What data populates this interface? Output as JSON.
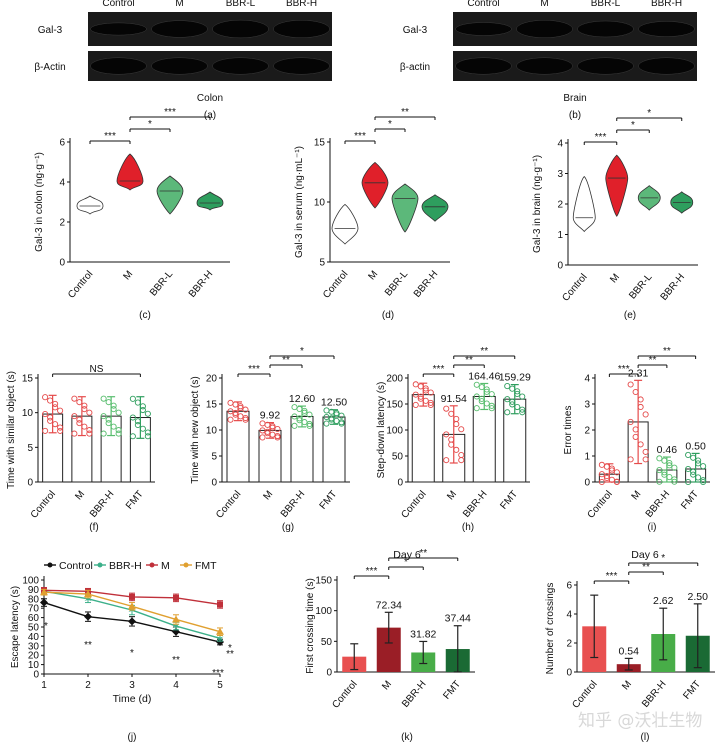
{
  "blots": [
    {
      "panel": "(a)",
      "tissue": "Colon",
      "lanes": [
        "Control",
        "M",
        "BBR-L",
        "BBR-H"
      ],
      "rows": [
        "Gal-3",
        "β-Actin"
      ],
      "intensity": {
        "Gal-3": [
          0.55,
          0.85,
          0.92,
          0.9
        ],
        "β-Actin": [
          0.95,
          0.95,
          0.95,
          0.95
        ]
      }
    },
    {
      "panel": "(b)",
      "tissue": "Brain",
      "lanes": [
        "Control",
        "M",
        "BBR-L",
        "BBR-H"
      ],
      "rows": [
        "Gal-3",
        "β-actin"
      ],
      "intensity": {
        "Gal-3": [
          0.6,
          0.9,
          0.8,
          0.75
        ],
        "β-actin": [
          0.95,
          0.95,
          0.95,
          0.95
        ]
      }
    }
  ],
  "chart_data": [
    {
      "panel": "(c)",
      "type": "violin",
      "ylabel": "Gal-3 in colon (ng·g⁻¹)",
      "ylim": [
        0,
        6
      ],
      "yticks": [
        0,
        2,
        4,
        6
      ],
      "categories": [
        "Control",
        "M",
        "BBR-L",
        "BBR-H"
      ],
      "series": [
        {
          "values": [
            [
              2.4,
              3.3
            ],
            [
              3.6,
              5.4
            ],
            [
              2.4,
              4.3
            ],
            [
              2.6,
              3.5
            ]
          ],
          "medians": [
            2.8,
            4.05,
            3.55,
            2.95
          ]
        }
      ],
      "colors": [
        "#ffffff",
        "#e0202a",
        "#5cb87a",
        "#2e9e5e"
      ],
      "significance": [
        {
          "pair": [
            "Control",
            "M"
          ],
          "label": "***"
        },
        {
          "pair": [
            "M",
            "BBR-L"
          ],
          "label": "*"
        },
        {
          "pair": [
            "M",
            "BBR-H"
          ],
          "label": "***"
        }
      ]
    },
    {
      "panel": "(d)",
      "type": "violin",
      "ylabel": "Gal-3 in serum (ng·mL⁻¹)",
      "ylim": [
        5,
        15
      ],
      "yticks": [
        5,
        10,
        15
      ],
      "categories": [
        "Control",
        "M",
        "BBR-L",
        "BBR-H"
      ],
      "series": [
        {
          "values": [
            [
              6.5,
              9.8
            ],
            [
              9.5,
              13.3
            ],
            [
              7.5,
              11.5
            ],
            [
              8.4,
              10.6
            ]
          ],
          "medians": [
            7.8,
            11.6,
            10.3,
            9.6
          ]
        }
      ],
      "colors": [
        "#ffffff",
        "#e0202a",
        "#5cb87a",
        "#2e9e5e"
      ],
      "significance": [
        {
          "pair": [
            "Control",
            "M"
          ],
          "label": "***"
        },
        {
          "pair": [
            "M",
            "BBR-L"
          ],
          "label": "*"
        },
        {
          "pair": [
            "M",
            "BBR-H"
          ],
          "label": "**"
        }
      ]
    },
    {
      "panel": "(e)",
      "type": "violin",
      "ylabel": "Gal-3 in brain (ng·g⁻¹)",
      "ylim": [
        0,
        4
      ],
      "yticks": [
        0,
        1,
        2,
        3,
        4
      ],
      "categories": [
        "Control",
        "M",
        "BBR-L",
        "BBR-H"
      ],
      "series": [
        {
          "values": [
            [
              1.1,
              2.9
            ],
            [
              1.6,
              3.6
            ],
            [
              1.8,
              2.6
            ],
            [
              1.7,
              2.4
            ]
          ],
          "medians": [
            1.55,
            2.85,
            2.2,
            2.05
          ]
        }
      ],
      "colors": [
        "#ffffff",
        "#e0202a",
        "#5cb87a",
        "#2e9e5e"
      ],
      "significance": [
        {
          "pair": [
            "Control",
            "M"
          ],
          "label": "***"
        },
        {
          "pair": [
            "M",
            "BBR-L"
          ],
          "label": "*"
        },
        {
          "pair": [
            "M",
            "BBR-H"
          ],
          "label": "*"
        }
      ]
    },
    {
      "panel": "(f)",
      "type": "bar",
      "ylabel": "Time with similar object (s)",
      "ylim": [
        0,
        15
      ],
      "yticks": [
        0,
        5,
        10,
        15
      ],
      "categories": [
        "Control",
        "M",
        "BBR-H",
        "FMT"
      ],
      "series": [
        {
          "values": [
            9.8,
            9.5,
            9.5,
            9.3
          ],
          "errors": [
            2.7,
            2.8,
            2.8,
            3.0
          ]
        }
      ],
      "value_labels": [],
      "colors": [
        "#e54b4b",
        "#e54b4b",
        "#57bd6d",
        "#2e9e5e"
      ],
      "significance": [
        {
          "pair": [
            "Control",
            "FMT"
          ],
          "label": "NS"
        }
      ]
    },
    {
      "panel": "(g)",
      "type": "bar",
      "ylabel": "Time with new object (s)",
      "ylim": [
        0,
        20
      ],
      "yticks": [
        0,
        5,
        10,
        15,
        20
      ],
      "categories": [
        "Control",
        "M",
        "BBR-H",
        "FMT"
      ],
      "series": [
        {
          "values": [
            13.6,
            9.92,
            12.6,
            12.5
          ],
          "errors": [
            1.8,
            1.5,
            2.0,
            1.4
          ]
        }
      ],
      "value_labels": [
        "",
        "9.92",
        "12.60",
        "12.50"
      ],
      "colors": [
        "#e54b4b",
        "#e54b4b",
        "#57bd6d",
        "#2e9e5e"
      ],
      "significance": [
        {
          "pair": [
            "Control",
            "M"
          ],
          "label": "***"
        },
        {
          "pair": [
            "M",
            "BBR-H"
          ],
          "label": "**"
        },
        {
          "pair": [
            "M",
            "FMT"
          ],
          "label": "*"
        }
      ]
    },
    {
      "panel": "(h)",
      "type": "bar",
      "ylabel": "Step-down latency (s)",
      "ylim": [
        0,
        200
      ],
      "yticks": [
        0,
        50,
        100,
        150,
        200
      ],
      "categories": [
        "Control",
        "M",
        "BBR-H",
        "FMT"
      ],
      "series": [
        {
          "values": [
            168,
            91.54,
            164.46,
            159.29
          ],
          "errors": [
            22,
            55,
            25,
            28
          ]
        }
      ],
      "value_labels": [
        "",
        "91.54",
        "164.46",
        "159.29"
      ],
      "colors": [
        "#e54b4b",
        "#e54b4b",
        "#57bd6d",
        "#2e9e5e"
      ],
      "significance": [
        {
          "pair": [
            "Control",
            "M"
          ],
          "label": "***"
        },
        {
          "pair": [
            "M",
            "BBR-H"
          ],
          "label": "**"
        },
        {
          "pair": [
            "M",
            "FMT"
          ],
          "label": "**"
        }
      ]
    },
    {
      "panel": "(i)",
      "type": "bar",
      "ylabel": "Error times",
      "ylim": [
        0,
        4
      ],
      "yticks": [
        0,
        1,
        2,
        3,
        4
      ],
      "categories": [
        "Control",
        "M",
        "BBR-H",
        "FMT"
      ],
      "series": [
        {
          "values": [
            0.3,
            2.31,
            0.46,
            0.5
          ],
          "errors": [
            0.4,
            1.6,
            0.5,
            0.6
          ]
        }
      ],
      "value_labels": [
        "",
        "2.31",
        "0.46",
        "0.50"
      ],
      "colors": [
        "#e54b4b",
        "#e54b4b",
        "#57bd6d",
        "#2e9e5e"
      ],
      "significance": [
        {
          "pair": [
            "Control",
            "M"
          ],
          "label": "***"
        },
        {
          "pair": [
            "M",
            "BBR-H"
          ],
          "label": "**"
        },
        {
          "pair": [
            "M",
            "FMT"
          ],
          "label": "**"
        }
      ]
    },
    {
      "panel": "(j)",
      "type": "line",
      "xlabel": "Time (d)",
      "ylabel": "Escape latency (s)",
      "xlim": [
        1,
        5
      ],
      "ylim": [
        0,
        100
      ],
      "x": [
        1,
        2,
        3,
        4,
        5
      ],
      "xticks": [
        1,
        2,
        3,
        4,
        5
      ],
      "yticks": [
        0,
        10,
        20,
        30,
        40,
        50,
        60,
        70,
        80,
        90,
        100
      ],
      "series": [
        {
          "name": "Control",
          "color": "#111111",
          "marker": "diamond",
          "values": [
            76,
            61,
            56,
            45,
            34
          ],
          "errors": [
            4,
            5,
            5,
            5,
            3
          ]
        },
        {
          "name": "BBR-H",
          "color": "#3cb08a",
          "marker": "star",
          "values": [
            88,
            80,
            68,
            51,
            38
          ],
          "errors": [
            3,
            4,
            5,
            4,
            3
          ]
        },
        {
          "name": "M",
          "color": "#c0303a",
          "marker": "square",
          "values": [
            89,
            88,
            82,
            81,
            74
          ],
          "errors": [
            3,
            3,
            4,
            4,
            4
          ]
        },
        {
          "name": "FMT",
          "color": "#e0a030",
          "marker": "triangle",
          "values": [
            87,
            85,
            72,
            58,
            45
          ],
          "errors": [
            3,
            4,
            4,
            5,
            4
          ]
        }
      ],
      "legend": "top",
      "annotations": [
        {
          "x": 1,
          "label": "*"
        },
        {
          "x": 2,
          "label": "**"
        },
        {
          "x": 3,
          "label": "*"
        },
        {
          "x": 4,
          "label": "**"
        },
        {
          "x": 5,
          "label": "***"
        },
        {
          "x": 5,
          "label": "*"
        },
        {
          "x": 5,
          "label": "**"
        }
      ]
    },
    {
      "panel": "(k)",
      "type": "bar",
      "title": "Day 6",
      "ylabel": "First crossing time (s)",
      "ylim": [
        0,
        150
      ],
      "yticks": [
        0,
        50,
        100,
        150
      ],
      "categories": [
        "Control",
        "M",
        "BBR-H",
        "FMT"
      ],
      "series": [
        {
          "values": [
            25,
            72.34,
            31.82,
            37.44
          ],
          "errors": [
            21,
            25,
            18,
            38
          ]
        }
      ],
      "value_labels": [
        "",
        "72.34",
        "31.82",
        "37.44"
      ],
      "colors": [
        "#e85050",
        "#9a1e26",
        "#48ad48",
        "#1a6a34"
      ],
      "significance": [
        {
          "pair": [
            "Control",
            "M"
          ],
          "label": "***"
        },
        {
          "pair": [
            "M",
            "BBR-H"
          ],
          "label": "*"
        },
        {
          "pair": [
            "M",
            "FMT"
          ],
          "label": "**"
        }
      ]
    },
    {
      "panel": "(l)",
      "type": "bar",
      "title": "Day 6",
      "ylabel": "Number of crossings",
      "ylim": [
        0,
        6
      ],
      "yticks": [
        0,
        2,
        4,
        6
      ],
      "categories": [
        "Control",
        "M",
        "BBR-H",
        "FMT"
      ],
      "series": [
        {
          "values": [
            3.15,
            0.54,
            2.62,
            2.5
          ],
          "errors": [
            2.15,
            0.4,
            1.78,
            2.2
          ]
        }
      ],
      "value_labels": [
        "",
        "0.54",
        "2.62",
        "2.50"
      ],
      "colors": [
        "#e85050",
        "#9a1e26",
        "#48ad48",
        "#1a6a34"
      ],
      "significance": [
        {
          "pair": [
            "Control",
            "M"
          ],
          "label": "***"
        },
        {
          "pair": [
            "M",
            "BBR-H"
          ],
          "label": "**"
        },
        {
          "pair": [
            "M",
            "FMT"
          ],
          "label": "*"
        }
      ]
    }
  ],
  "watermark": "知乎 @沃壮生物"
}
